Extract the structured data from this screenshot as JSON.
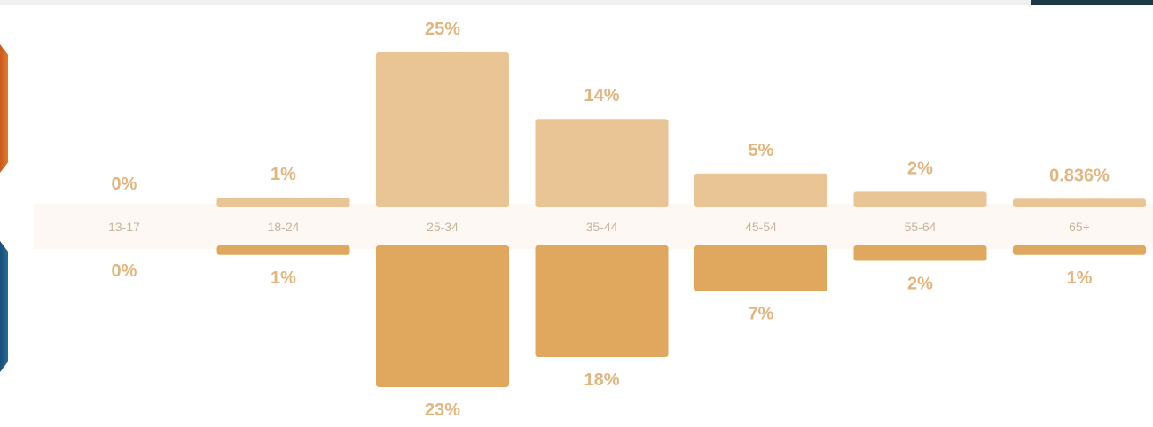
{
  "colors": {
    "upper": "#e9c596",
    "lower": "#dfa85e",
    "band": "#fdf8f3",
    "label": "#e2b57f"
  },
  "chart_data": {
    "type": "bar",
    "categories": [
      "13-17",
      "18-24",
      "25-34",
      "35-44",
      "45-54",
      "55-64",
      "65+"
    ],
    "series": [
      {
        "values": [
          0,
          1,
          25,
          14,
          5,
          2,
          0.836
        ],
        "labels": [
          "0%",
          "1%",
          "25%",
          "14%",
          "5%",
          "2%",
          "0.836%"
        ]
      },
      {
        "values": [
          0,
          1,
          23,
          18,
          7,
          2,
          1
        ],
        "labels": [
          "0%",
          "1%",
          "23%",
          "18%",
          "7%",
          "2%",
          "1%"
        ]
      }
    ],
    "title": "",
    "xlabel": "",
    "ylabel": "",
    "legend": "none",
    "grid": false
  }
}
